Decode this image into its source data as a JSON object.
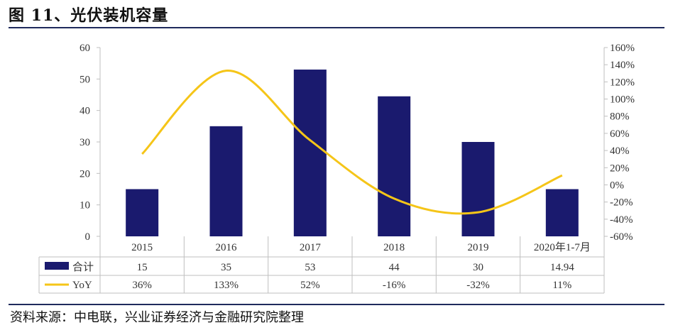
{
  "header": {
    "title": "图 11、光伏装机容量"
  },
  "footer": {
    "source": "资料来源：中电联，兴业证券经济与金融研究院整理"
  },
  "chart_data": {
    "type": "bar",
    "categories": [
      "2015",
      "2016",
      "2017",
      "2018",
      "2019",
      "2020年1-7月"
    ],
    "series": [
      {
        "name": "合计",
        "type": "bar",
        "axis": "left",
        "color": "#1a1a6e",
        "values": [
          15,
          35,
          53,
          44.5,
          30,
          15
        ],
        "labels": [
          "15",
          "35",
          "53",
          "44",
          "30",
          "14.94"
        ]
      },
      {
        "name": "YoY",
        "type": "line",
        "axis": "right",
        "color": "#f5c518",
        "values": [
          36,
          133,
          52,
          -16,
          -32,
          11
        ],
        "labels": [
          "36%",
          "133%",
          "52%",
          "-16%",
          "-32%",
          "11%"
        ]
      }
    ],
    "y_left": {
      "ticks": [
        "0",
        "10",
        "20",
        "30",
        "40",
        "50",
        "60"
      ],
      "ylim": [
        0,
        60
      ]
    },
    "y_right": {
      "ticks": [
        "-60%",
        "-40%",
        "-20%",
        "0%",
        "20%",
        "40%",
        "60%",
        "80%",
        "100%",
        "120%",
        "140%",
        "160%"
      ],
      "ylim": [
        -60,
        160
      ]
    },
    "grid": false,
    "legend": "bottom-table"
  }
}
